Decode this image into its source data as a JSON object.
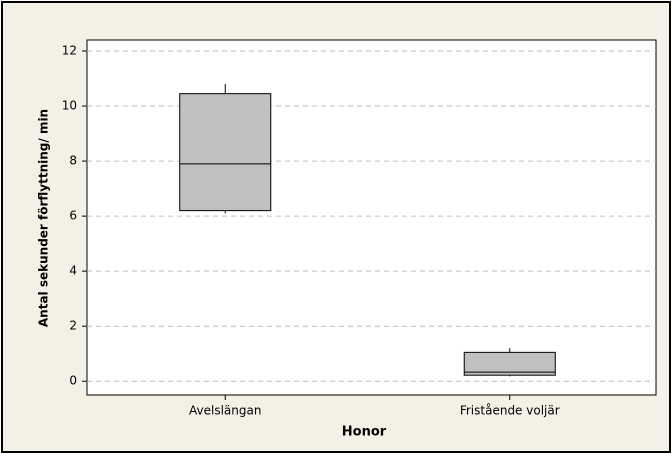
{
  "chart_data": {
    "type": "box",
    "x_label": "Honor",
    "y_label": "Antal sekunder förflyttning/ min",
    "categories": [
      "Avelslängan",
      "Fristående voljär"
    ],
    "min": [
      6.1,
      0.18
    ],
    "q1": [
      6.2,
      0.22
    ],
    "median": [
      7.9,
      0.33
    ],
    "q3": [
      10.45,
      1.05
    ],
    "max": [
      10.8,
      1.2
    ],
    "color": "#c0c0c0",
    "ylim": [
      -0.5,
      12.4
    ],
    "yticks": [
      0,
      2,
      4,
      6,
      8,
      10,
      12
    ],
    "grid": true
  }
}
